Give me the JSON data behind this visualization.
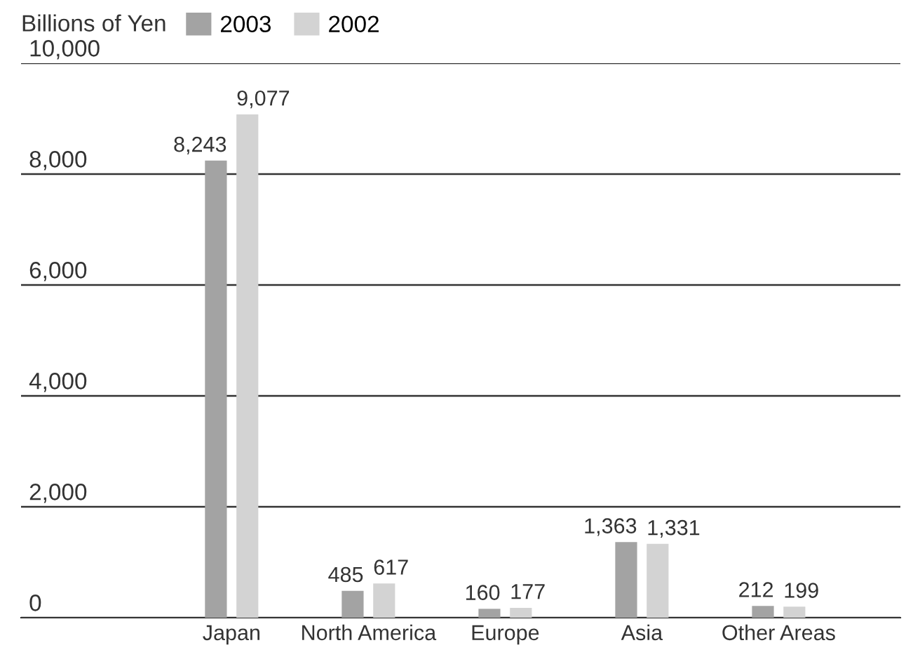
{
  "chart_data": {
    "type": "bar",
    "ylabel": "Billions of Yen",
    "categories": [
      "Japan",
      "North America",
      "Europe",
      "Asia",
      "Other Areas"
    ],
    "series": [
      {
        "name": "2003",
        "color": "#a3a3a3",
        "values": [
          8243,
          485,
          160,
          1363,
          212
        ],
        "value_labels": [
          "8,243",
          "485",
          "160",
          "1,363",
          "212"
        ]
      },
      {
        "name": "2002",
        "color": "#d3d3d3",
        "values": [
          9077,
          617,
          177,
          1331,
          199
        ],
        "value_labels": [
          "9,077",
          "617",
          "177",
          "1,331",
          "199"
        ]
      }
    ],
    "ylim": [
      0,
      10000
    ],
    "yticks": [
      0,
      {
        "value": 2000,
        "label": "2,000"
      },
      {
        "value": 4000,
        "label": "4,000"
      },
      {
        "value": 6000,
        "label": "6,000"
      },
      {
        "value": 8000,
        "label": "8,000"
      },
      {
        "value": 10000,
        "label": "10,000"
      }
    ],
    "grid": "y",
    "legend": "top left"
  }
}
